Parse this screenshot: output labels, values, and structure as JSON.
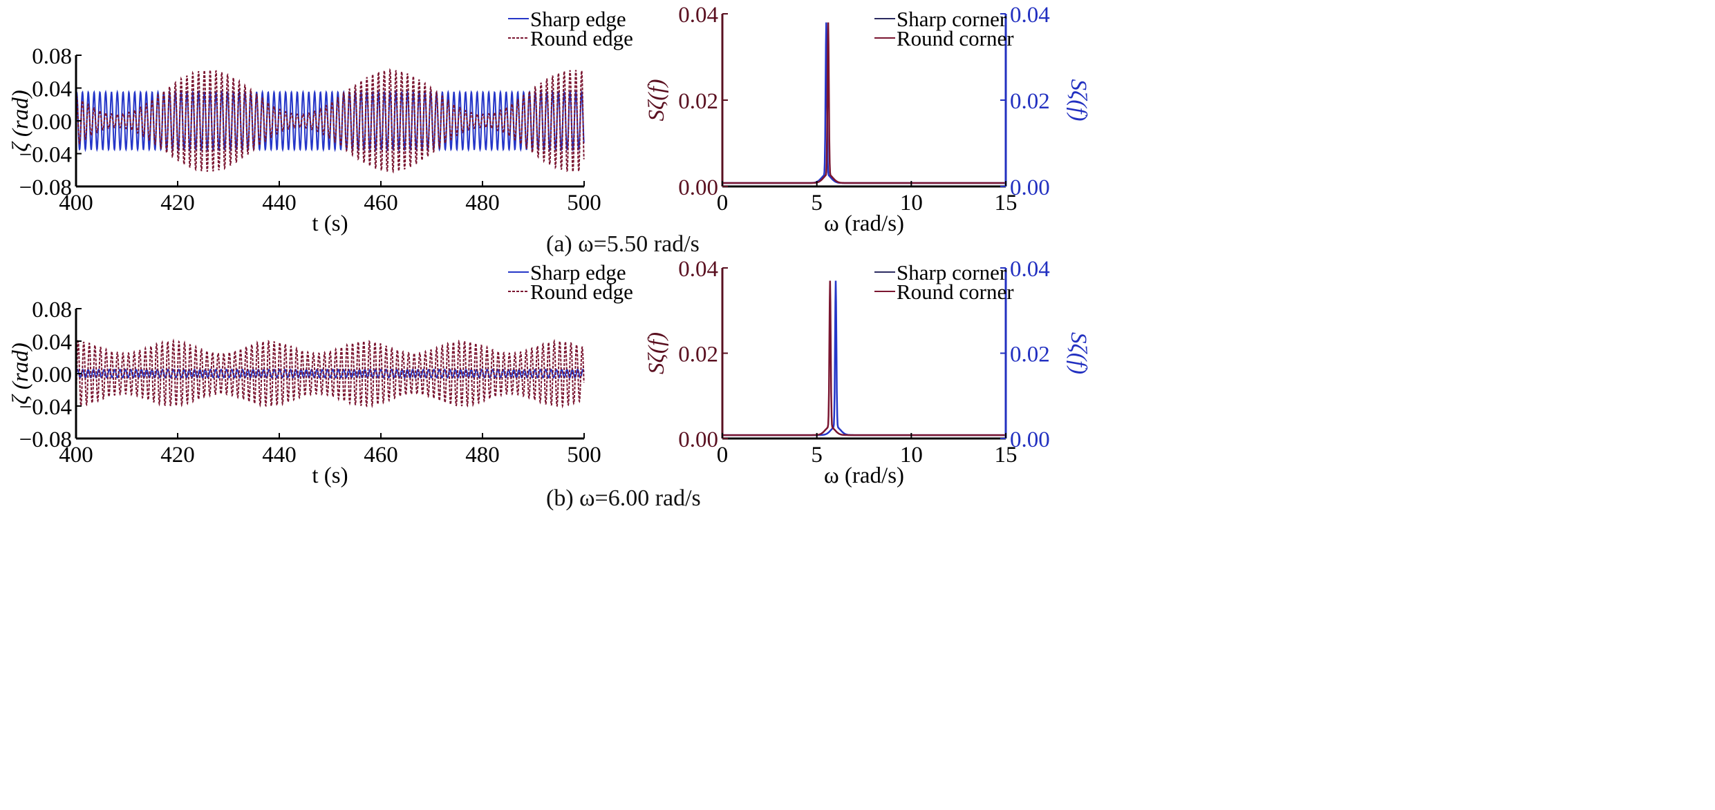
{
  "colors": {
    "sharp": "#2536c8",
    "round": "#7a1530",
    "left_axis": "#5a1020",
    "right_axis": "#2230c0"
  },
  "captions": [
    "(a) ω=5.50 rad/s",
    "(b) ω=6.00 rad/s"
  ],
  "chart_data": [
    {
      "type": "line",
      "panel": "a-time",
      "xlabel": "t (s)",
      "ylabel": "ζ (rad)",
      "xlim": [
        400,
        500
      ],
      "ylim": [
        -0.08,
        0.08
      ],
      "xticks": [
        "400",
        "420",
        "440",
        "460",
        "480",
        "500"
      ],
      "yticks": [
        "0.08",
        "0.04",
        "0.00",
        "−0.04",
        "−0.08"
      ],
      "legend": [
        "Sharp edge",
        "Round edge"
      ],
      "legend_position": "top-right",
      "series": [
        {
          "name": "Sharp edge",
          "model": "amplitude·sin(ω t)",
          "amplitude": 0.035,
          "omega": 5.5
        },
        {
          "name": "Round edge",
          "model": "beating oscillation",
          "envelope_max": 0.062,
          "envelope_min": 0.008,
          "omega": 5.5,
          "beat_period": 36,
          "envelope_peak_t": 426
        }
      ]
    },
    {
      "type": "line",
      "panel": "a-spectrum",
      "xlabel": "ω (rad/s)",
      "ylabel": "Sζ(f)",
      "ylabel_right": "Sζ(f)",
      "xlim": [
        0,
        15
      ],
      "ylim": [
        0,
        0.04
      ],
      "xticks": [
        "0",
        "5",
        "10",
        "15"
      ],
      "yticks": [
        "0.04",
        "0.02",
        "0.00"
      ],
      "yticks_right": [
        "0.04",
        "0.02",
        "0.00"
      ],
      "legend": [
        "Sharp corner",
        "Round corner"
      ],
      "legend_position": "top-right",
      "series": [
        {
          "name": "Sharp corner",
          "peak_omega": 5.5,
          "peak_value": 0.036,
          "baseline": 0.0008
        },
        {
          "name": "Round corner",
          "peak_omega": 5.6,
          "peak_value": 0.036,
          "baseline": 0.0008
        }
      ]
    },
    {
      "type": "line",
      "panel": "b-time",
      "xlabel": "t (s)",
      "ylabel": "ζ (rad)",
      "xlim": [
        400,
        500
      ],
      "ylim": [
        -0.08,
        0.08
      ],
      "xticks": [
        "400",
        "420",
        "440",
        "460",
        "480",
        "500"
      ],
      "yticks": [
        "0.08",
        "0.04",
        "0.00",
        "−0.04",
        "−0.08"
      ],
      "legend": [
        "Sharp edge",
        "Round edge"
      ],
      "legend_position": "top-right",
      "series": [
        {
          "name": "Sharp edge",
          "model": "amplitude·sin(ω t)",
          "amplitude": 0.005,
          "omega": 6.0
        },
        {
          "name": "Round edge",
          "model": "beating oscillation",
          "envelope_max": 0.04,
          "envelope_min": 0.025,
          "omega": 5.7,
          "beat_period": 19,
          "envelope_peak_t": 419
        }
      ]
    },
    {
      "type": "line",
      "panel": "b-spectrum",
      "xlabel": "ω (rad/s)",
      "ylabel": "Sζ(f)",
      "ylabel_right": "Sζ(f)",
      "xlim": [
        0,
        15
      ],
      "ylim": [
        0,
        0.04
      ],
      "xticks": [
        "0",
        "5",
        "10",
        "15"
      ],
      "yticks": [
        "0.04",
        "0.02",
        "0.00"
      ],
      "yticks_right": [
        "0.04",
        "0.02",
        "0.00"
      ],
      "legend": [
        "Sharp corner",
        "Round corner"
      ],
      "legend_position": "top-right",
      "series": [
        {
          "name": "Sharp corner",
          "peak_omega": 6.0,
          "peak_value": 0.035,
          "baseline": 0.0008
        },
        {
          "name": "Round corner",
          "peak_omega": 5.7,
          "peak_value": 0.035,
          "baseline": 0.0008
        }
      ]
    }
  ]
}
